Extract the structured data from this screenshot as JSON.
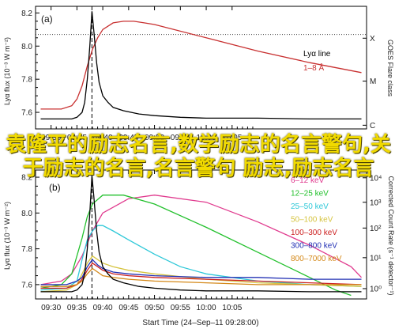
{
  "chart_data": [
    {
      "type": "line",
      "panel": "(a)",
      "x_ticks": [
        "09:30",
        "09:35",
        "09:40",
        "09:45",
        "09:50",
        "09:55",
        "10:00",
        "10:05"
      ],
      "xlim_minutes": [
        -3,
        61
      ],
      "ylabel": "Lyα flux (10⁻³ W m⁻²)",
      "y_ticks": [
        "7.6",
        "7.8",
        "8.0",
        "8.2"
      ],
      "ylim": [
        7.5,
        8.24
      ],
      "y2label": "GOES Flare class",
      "y2_ticks": [
        "X",
        "M",
        "C"
      ],
      "legend": [
        {
          "label": "Lyα line",
          "color": "#000000"
        },
        {
          "label": "1–8 Å",
          "color": "#c83030"
        }
      ],
      "threshold_y": 8.07,
      "event_x": 7.9,
      "series": [
        {
          "name": "Lyα line",
          "color": "#000000",
          "x": [
            -2,
            0,
            2,
            4,
            5,
            6,
            6.5,
            7,
            7.5,
            7.9,
            8.3,
            8.8,
            9.3,
            10,
            11,
            12,
            14,
            17,
            20,
            25,
            30,
            40,
            50,
            60
          ],
          "y": [
            7.56,
            7.56,
            7.56,
            7.56,
            7.57,
            7.6,
            7.66,
            7.8,
            8.0,
            8.21,
            8.08,
            7.9,
            7.78,
            7.7,
            7.66,
            7.63,
            7.61,
            7.59,
            7.58,
            7.57,
            7.565,
            7.565,
            7.56,
            7.56
          ]
        },
        {
          "name": "1–8 Å",
          "color": "#c83030",
          "x": [
            -2,
            2,
            4,
            5,
            6,
            7,
            8,
            9,
            10,
            12,
            14,
            16,
            18,
            20,
            30,
            40,
            50,
            60
          ],
          "y": [
            7.62,
            7.62,
            7.64,
            7.68,
            7.76,
            7.88,
            7.98,
            8.05,
            8.1,
            8.14,
            8.15,
            8.15,
            8.14,
            8.13,
            8.05,
            7.97,
            7.9,
            7.84
          ]
        }
      ]
    },
    {
      "type": "line",
      "panel": "(b)",
      "x_ticks": [
        "09:30",
        "09:35",
        "09:40",
        "09:45",
        "09:50",
        "09:55",
        "10:00",
        "10:05"
      ],
      "xlim_minutes": [
        -3,
        61
      ],
      "xlabel": "Start Time (24–Sep–11 09:28:00)",
      "ylabel": "Lyα flux (10⁻³ W m⁻²)",
      "y_ticks": [
        "7.6",
        "7.8",
        "8.0",
        "8.2"
      ],
      "ylim": [
        7.52,
        8.24
      ],
      "y2label": "Corrected Count Rate (s⁻¹ detector⁻¹)",
      "y2_ticks": [
        "10⁴",
        "10³",
        "10²",
        "10¹",
        "10⁰"
      ],
      "event_x": 7.9,
      "legend": [
        {
          "label": "6–12 keV",
          "color": "#e03a8e"
        },
        {
          "label": "12–25 keV",
          "color": "#22c02c"
        },
        {
          "label": "25–50 keV",
          "color": "#2ec8d8"
        },
        {
          "label": "50–100 keV",
          "color": "#d6c440"
        },
        {
          "label": "100–300 keV",
          "color": "#cc2020"
        },
        {
          "label": "300–800 keV",
          "color": "#2230b4"
        },
        {
          "label": "800–7000 keV",
          "color": "#d48818"
        }
      ],
      "series": [
        {
          "name": "Lyα line",
          "color": "#000000",
          "x": [
            -2,
            0,
            2,
            4,
            5,
            6,
            6.5,
            7,
            7.5,
            7.9,
            8.3,
            8.8,
            9.3,
            10,
            11,
            12,
            14,
            17,
            20,
            25,
            30,
            40,
            50,
            60
          ],
          "y": [
            7.56,
            7.56,
            7.56,
            7.56,
            7.57,
            7.6,
            7.66,
            7.8,
            8.0,
            8.21,
            8.08,
            7.9,
            7.78,
            7.7,
            7.66,
            7.63,
            7.61,
            7.59,
            7.58,
            7.57,
            7.565,
            7.565,
            7.56,
            7.56
          ]
        },
        {
          "name": "6–12 keV",
          "color": "#e03a8e",
          "x": [
            -2,
            2,
            4,
            6,
            8,
            10,
            15,
            20,
            30,
            40,
            50,
            58,
            60
          ],
          "y": [
            7.6,
            7.62,
            7.66,
            7.76,
            7.9,
            8.0,
            8.08,
            8.1,
            8.06,
            7.95,
            7.82,
            7.7,
            7.64
          ]
        },
        {
          "name": "12–25 keV",
          "color": "#22c02c",
          "x": [
            -2,
            2,
            4,
            6,
            7,
            8,
            10,
            14,
            20,
            30,
            40,
            50,
            55,
            58
          ],
          "y": [
            7.58,
            7.6,
            7.66,
            7.86,
            7.98,
            8.05,
            8.1,
            8.1,
            8.05,
            7.92,
            7.78,
            7.64,
            7.57,
            7.54
          ]
        },
        {
          "name": "25–50 keV",
          "color": "#2ec8d8",
          "x": [
            -2,
            3,
            5,
            6,
            7,
            8,
            9,
            10,
            12,
            15,
            20,
            25,
            30,
            40,
            50,
            60
          ],
          "y": [
            7.57,
            7.58,
            7.62,
            7.74,
            7.85,
            7.9,
            7.93,
            7.93,
            7.9,
            7.85,
            7.77,
            7.7,
            7.66,
            7.62,
            7.6,
            7.59
          ]
        },
        {
          "name": "50–100 keV",
          "color": "#d6c440",
          "x": [
            -2,
            3,
            5,
            6,
            7,
            8,
            9,
            10,
            12,
            15,
            20,
            30,
            40,
            50,
            60
          ],
          "y": [
            7.56,
            7.57,
            7.6,
            7.66,
            7.72,
            7.76,
            7.74,
            7.72,
            7.7,
            7.68,
            7.66,
            7.63,
            7.61,
            7.6,
            7.59
          ]
        },
        {
          "name": "100–300 keV",
          "color": "#cc2020",
          "x": [
            -2,
            3,
            5,
            6,
            7,
            8,
            9,
            10,
            12,
            15,
            20,
            30,
            40,
            50,
            60
          ],
          "y": [
            7.58,
            7.58,
            7.6,
            7.63,
            7.68,
            7.72,
            7.7,
            7.68,
            7.66,
            7.65,
            7.64,
            7.63,
            7.62,
            7.61,
            7.6
          ]
        },
        {
          "name": "300–800 keV",
          "color": "#2230b4",
          "x": [
            -2,
            3,
            5,
            6,
            7,
            8,
            9,
            10,
            12,
            15,
            20,
            30,
            40,
            50,
            60
          ],
          "y": [
            7.6,
            7.6,
            7.62,
            7.64,
            7.7,
            7.74,
            7.71,
            7.69,
            7.67,
            7.66,
            7.65,
            7.64,
            7.64,
            7.63,
            7.63
          ]
        },
        {
          "name": "800–7000 keV",
          "color": "#d48818",
          "x": [
            -2,
            3,
            5,
            6,
            7,
            8,
            9,
            10,
            12,
            15,
            20,
            30,
            40,
            50,
            60
          ],
          "y": [
            7.59,
            7.59,
            7.6,
            7.62,
            7.66,
            7.69,
            7.67,
            7.65,
            7.64,
            7.63,
            7.62,
            7.61,
            7.6,
            7.6,
            7.6
          ]
        }
      ]
    }
  ],
  "overlay_text": "袁隆平的励志名言,数学励志的名言警句,关于励志的名言,名言警句 励志,励志名言"
}
